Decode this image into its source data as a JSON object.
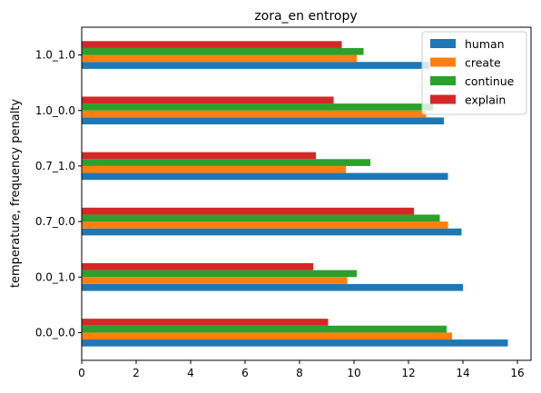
{
  "chart_data": {
    "type": "bar",
    "orientation": "horizontal",
    "title": "zora_en entropy",
    "xlabel": "",
    "ylabel": "temperature, frequency penalty",
    "categories": [
      "0.0_0.0",
      "0.0_1.0",
      "0.7_0.0",
      "0.7_1.0",
      "1.0_0.0",
      "1.0_1.0"
    ],
    "xlim": [
      0,
      16.5
    ],
    "xticks": [
      "0",
      "2",
      "4",
      "6",
      "8",
      "10",
      "12",
      "14",
      "16"
    ],
    "grid": false,
    "legend_position": "upper right",
    "series": [
      {
        "name": "human",
        "color": "#1f77b4",
        "values": [
          15.65,
          14.0,
          13.95,
          13.45,
          13.3,
          12.75
        ]
      },
      {
        "name": "create",
        "color": "#ff7f0e",
        "values": [
          13.6,
          9.75,
          13.45,
          9.7,
          12.65,
          10.1
        ]
      },
      {
        "name": "continue",
        "color": "#2ca02c",
        "values": [
          13.4,
          10.1,
          13.15,
          10.6,
          12.9,
          10.35
        ]
      },
      {
        "name": "explain",
        "color": "#d62728",
        "values": [
          9.05,
          8.5,
          12.2,
          8.6,
          9.25,
          9.55
        ]
      }
    ]
  }
}
